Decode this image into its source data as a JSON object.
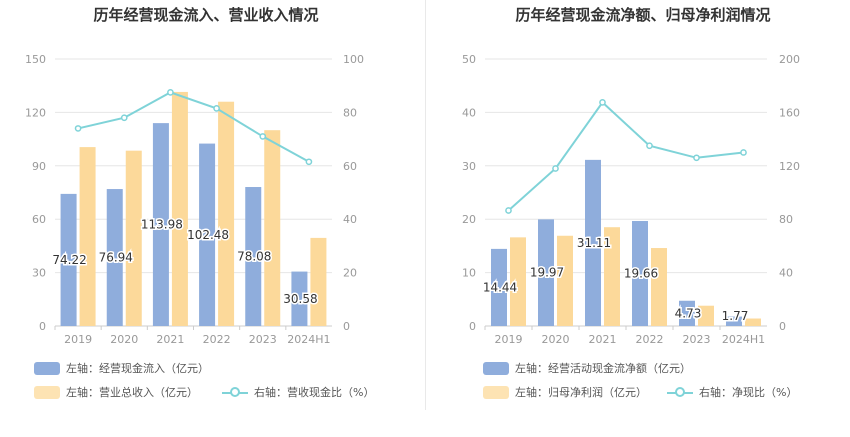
{
  "colors": {
    "bar_primary": "#8faddc",
    "bar_secondary": "#fcd99a",
    "line": "#7fd3d8",
    "axis_text": "#999999",
    "grid": "#e6e6e6"
  },
  "chart_data": [
    {
      "type": "bar",
      "title": "历年经营现金流入、营业收入情况",
      "categories": [
        "2019",
        "2020",
        "2021",
        "2022",
        "2023",
        "2024H1"
      ],
      "y_left": {
        "ticks": [
          "0",
          "30",
          "60",
          "90",
          "120",
          "150"
        ],
        "lim": [
          0,
          150
        ]
      },
      "y_right": {
        "ticks": [
          "0",
          "20",
          "40",
          "60",
          "80",
          "100"
        ],
        "lim": [
          0,
          100
        ]
      },
      "grid": true,
      "legend_position": "bottom-left",
      "series": [
        {
          "name": "左轴：经营现金流入（亿元）",
          "kind": "bar",
          "axis": "left",
          "values": [
            74.22,
            76.94,
            113.98,
            102.48,
            78.08,
            30.58
          ],
          "labels": [
            "74.22",
            "76.94",
            "113.98",
            "102.48",
            "78.08",
            "30.58"
          ]
        },
        {
          "name": "左轴：营业总收入（亿元）",
          "kind": "bar",
          "axis": "left",
          "values": [
            100.5,
            98.5,
            131.5,
            126,
            110,
            49.5
          ]
        },
        {
          "name": "右轴：营收现金比（%）",
          "kind": "line",
          "axis": "right",
          "values": [
            74,
            78,
            87.5,
            81.5,
            71,
            61.5
          ]
        }
      ]
    },
    {
      "type": "bar",
      "title": "历年经营现金流净额、归母净利润情况",
      "categories": [
        "2019",
        "2020",
        "2021",
        "2022",
        "2023",
        "2024H1"
      ],
      "y_left": {
        "ticks": [
          "0",
          "10",
          "20",
          "30",
          "40",
          "50"
        ],
        "lim": [
          0,
          50
        ]
      },
      "y_right": {
        "ticks": [
          "0",
          "40",
          "80",
          "120",
          "160",
          "200"
        ],
        "lim": [
          0,
          200
        ]
      },
      "grid": true,
      "legend_position": "bottom-left",
      "series": [
        {
          "name": "左轴：经营活动现金流净额（亿元）",
          "kind": "bar",
          "axis": "left",
          "values": [
            14.44,
            19.97,
            31.11,
            19.66,
            4.73,
            1.77
          ],
          "labels": [
            "14.44",
            "19.97",
            "31.11",
            "19.66",
            "4.73",
            "1.77"
          ]
        },
        {
          "name": "左轴：归母净利润（亿元）",
          "kind": "bar",
          "axis": "left",
          "values": [
            16.6,
            16.9,
            18.5,
            14.6,
            3.8,
            1.4
          ]
        },
        {
          "name": "右轴：净现比（%）",
          "kind": "line",
          "axis": "right",
          "values": [
            86.5,
            118,
            167.5,
            135,
            126,
            130
          ]
        }
      ]
    }
  ]
}
